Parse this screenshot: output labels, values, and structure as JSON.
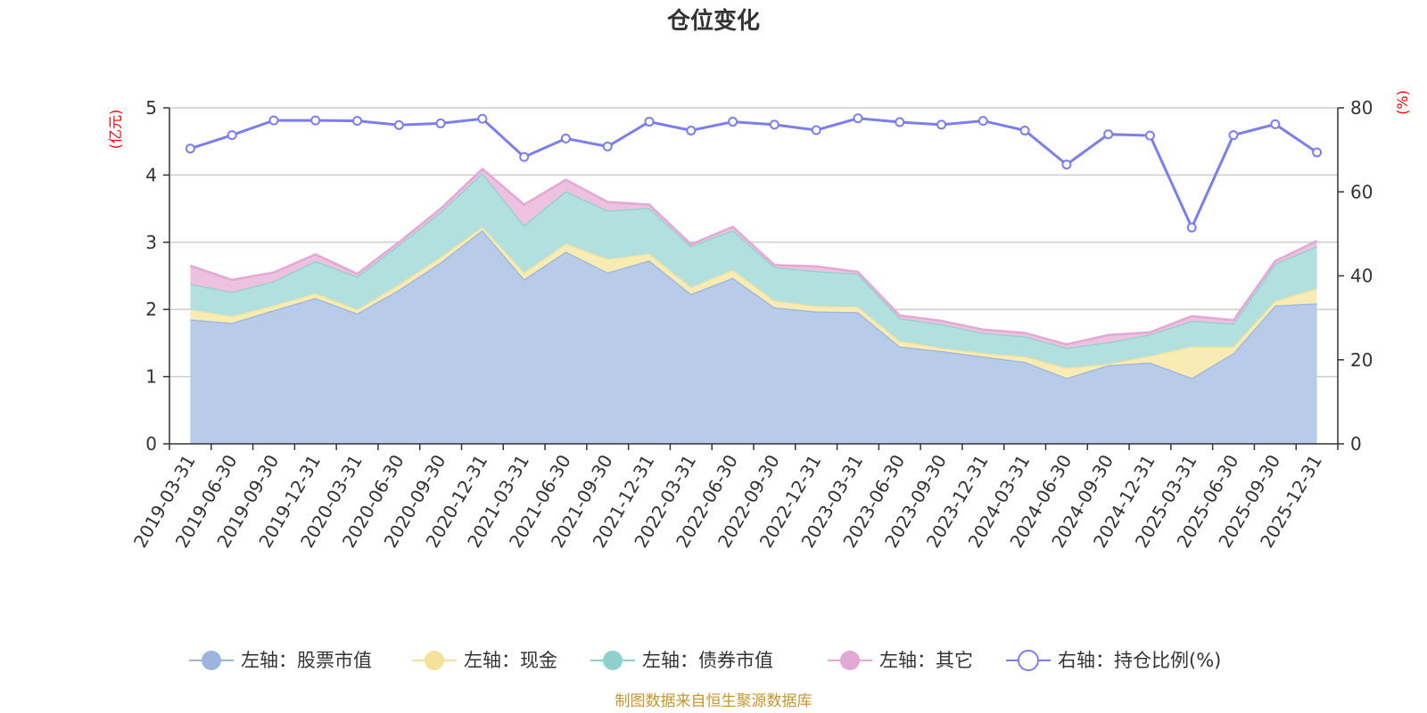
{
  "chart_data": {
    "type": "area",
    "title": "仓位变化",
    "left_unit": "(亿元)",
    "right_unit": "(%)",
    "left_ylim": [
      0,
      5
    ],
    "left_ticks": [
      "0",
      "1",
      "2",
      "3",
      "4",
      "5"
    ],
    "right_ylim": [
      0,
      80
    ],
    "right_ticks": [
      "0",
      "20",
      "40",
      "60",
      "80"
    ],
    "categories": [
      "2019-03-31",
      "2019-06-30",
      "2019-09-30",
      "2019-12-31",
      "2020-03-31",
      "2020-06-30",
      "2020-09-30",
      "2020-12-31",
      "2021-03-31",
      "2021-06-30",
      "2021-09-30",
      "2021-12-31",
      "2022-03-31",
      "2022-06-30",
      "2022-09-30",
      "2022-12-31",
      "2023-03-31",
      "2023-06-30",
      "2023-09-30",
      "2023-12-31",
      "2024-03-31",
      "2024-06-30",
      "2024-09-30",
      "2024-12-31",
      "2025-03-31",
      "2025-06-30",
      "2025-09-30",
      "2025-12-31"
    ],
    "series": [
      {
        "name": "左轴：股票市值",
        "axis": "left",
        "color": "#9bb5df",
        "fill": "#b8cce9",
        "values": [
          1.85,
          1.8,
          1.99,
          2.17,
          1.94,
          2.29,
          2.7,
          3.18,
          2.45,
          2.86,
          2.55,
          2.73,
          2.23,
          2.47,
          2.03,
          1.97,
          1.96,
          1.45,
          1.38,
          1.3,
          1.22,
          0.98,
          1.17,
          1.21,
          0.98,
          1.35,
          2.06,
          2.09
        ]
      },
      {
        "name": "左轴：现金",
        "axis": "left",
        "color": "#f5e29a",
        "fill": "#f8ebb4",
        "values": [
          0.15,
          0.1,
          0.07,
          0.07,
          0.06,
          0.08,
          0.08,
          0.05,
          0.1,
          0.12,
          0.2,
          0.1,
          0.1,
          0.12,
          0.1,
          0.08,
          0.08,
          0.08,
          0.05,
          0.05,
          0.08,
          0.15,
          0.02,
          0.1,
          0.47,
          0.1,
          0.07,
          0.22
        ]
      },
      {
        "name": "左轴：债券市值",
        "axis": "left",
        "color": "#8fd0ce",
        "fill": "#b2e0df",
        "values": [
          0.38,
          0.36,
          0.36,
          0.48,
          0.49,
          0.59,
          0.67,
          0.8,
          0.7,
          0.78,
          0.72,
          0.68,
          0.61,
          0.59,
          0.5,
          0.52,
          0.49,
          0.34,
          0.35,
          0.3,
          0.3,
          0.3,
          0.32,
          0.32,
          0.38,
          0.34,
          0.55,
          0.63
        ]
      },
      {
        "name": "左轴：其它",
        "axis": "left",
        "color": "#e3a8d4",
        "fill": "#ecc2e0",
        "values": [
          0.27,
          0.18,
          0.13,
          0.1,
          0.04,
          0.04,
          0.05,
          0.06,
          0.31,
          0.17,
          0.13,
          0.05,
          0.03,
          0.05,
          0.03,
          0.07,
          0.03,
          0.04,
          0.05,
          0.05,
          0.05,
          0.05,
          0.11,
          0.03,
          0.07,
          0.05,
          0.04,
          0.08
        ]
      },
      {
        "name": "右轴：持仓比例(%)",
        "axis": "right",
        "color": "#7b7eee",
        "values": [
          70.3,
          73.5,
          77.0,
          77.0,
          76.9,
          75.9,
          76.3,
          77.4,
          68.3,
          72.7,
          70.8,
          76.7,
          74.6,
          76.7,
          76.0,
          74.7,
          77.5,
          76.6,
          76.0,
          76.9,
          74.6,
          66.5,
          73.7,
          73.4,
          51.5,
          73.5,
          76.1,
          69.4
        ]
      }
    ],
    "source_note": "制图数据来自恒生聚源数据库"
  }
}
